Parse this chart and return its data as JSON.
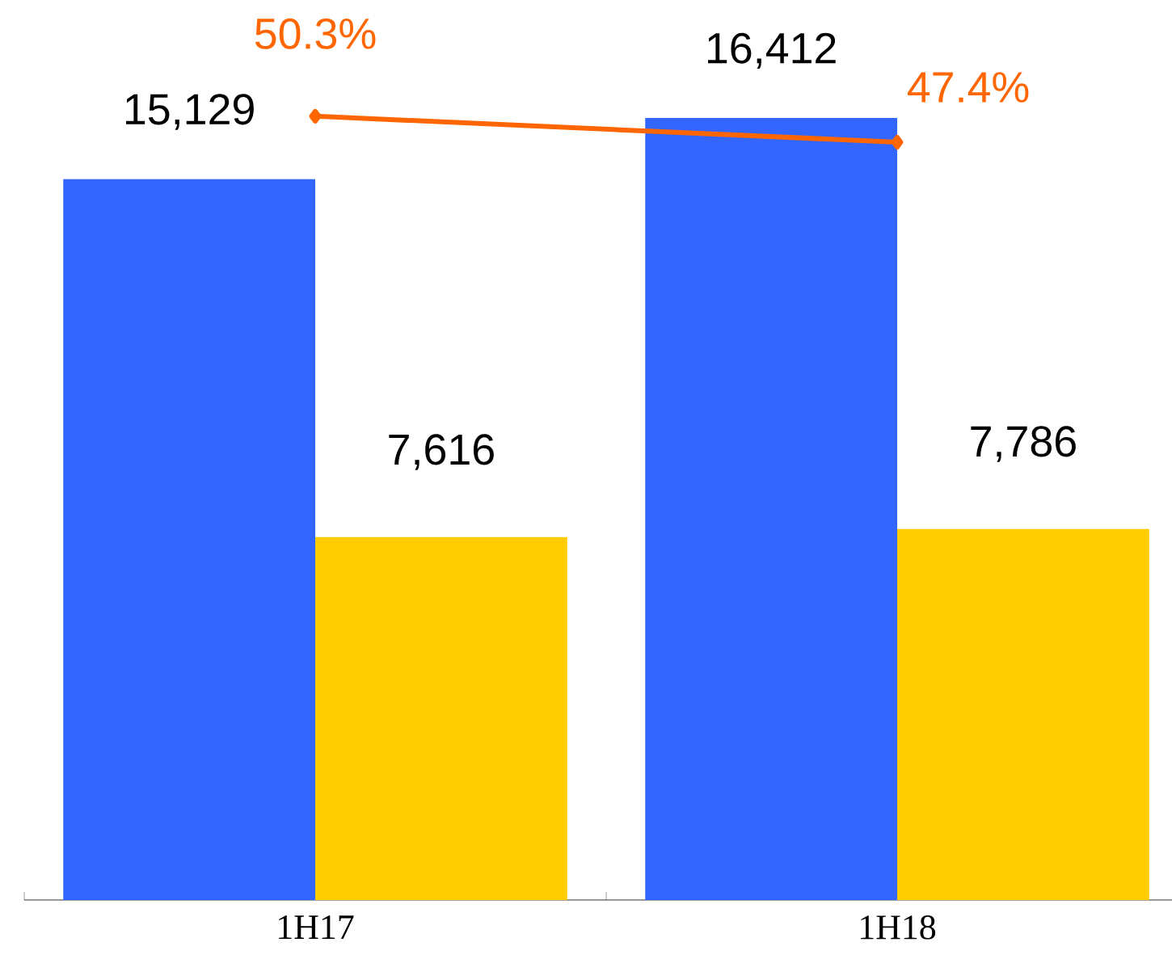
{
  "chart_data": {
    "type": "bar",
    "categories": [
      "1H17",
      "1H18"
    ],
    "grid": false,
    "marker": "diamond",
    "series": [
      {
        "color": "#3366ff",
        "values": [
          15129,
          16412
        ],
        "value_labels": [
          "15,129",
          "16,412"
        ]
      },
      {
        "color": "#ffcc00",
        "values": [
          7616,
          7786
        ],
        "value_labels": [
          "7,616",
          "7,786"
        ]
      },
      {
        "type": "line",
        "axis": "y2",
        "color": "#ff6600",
        "values": [
          50.3,
          47.4
        ],
        "value_labels": [
          "50.3%",
          "47.4%"
        ]
      }
    ]
  }
}
